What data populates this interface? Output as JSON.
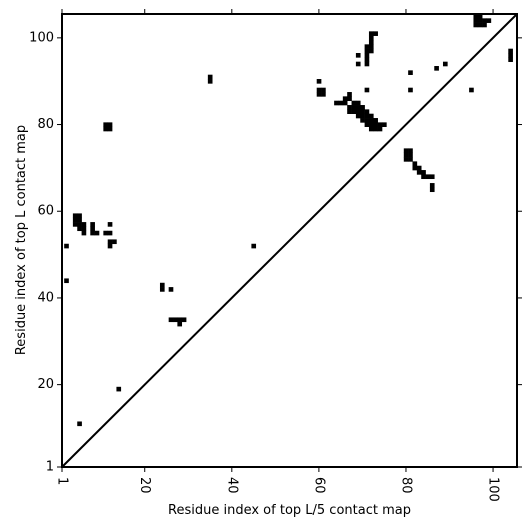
{
  "chart_data": {
    "type": "heatmap",
    "title": "",
    "xlabel": "Residue index of top L/5 contact map",
    "ylabel": "Residue index of top L contact map",
    "xlim": [
      1,
      105.5
    ],
    "ylim": [
      1,
      105.5
    ],
    "xticks": [
      1,
      20,
      40,
      60,
      80,
      100
    ],
    "yticks": [
      1,
      20,
      40,
      60,
      80,
      100
    ],
    "xtick_labels": [
      "1",
      "20",
      "40",
      "60",
      "80",
      "100"
    ],
    "ytick_labels": [
      "1",
      "20",
      "40",
      "60",
      "80",
      "100"
    ],
    "grid": false,
    "diagonal_line": true,
    "marker_color": "#000000",
    "cells": [
      [
        2,
        52
      ],
      [
        2,
        44
      ],
      [
        5,
        11
      ],
      [
        4,
        59
      ],
      [
        5,
        59
      ],
      [
        4,
        58
      ],
      [
        5,
        58
      ],
      [
        4,
        57
      ],
      [
        5,
        57
      ],
      [
        6,
        57
      ],
      [
        5,
        56
      ],
      [
        6,
        56
      ],
      [
        6,
        55
      ],
      [
        8,
        57
      ],
      [
        8,
        56
      ],
      [
        8,
        55
      ],
      [
        9,
        55
      ],
      [
        11,
        55
      ],
      [
        12,
        55
      ],
      [
        12,
        57
      ],
      [
        12,
        53
      ],
      [
        13,
        53
      ],
      [
        12,
        52
      ],
      [
        11,
        80
      ],
      [
        12,
        80
      ],
      [
        11,
        79
      ],
      [
        12,
        79
      ],
      [
        14,
        19
      ],
      [
        24,
        43
      ],
      [
        24,
        42
      ],
      [
        26,
        42
      ],
      [
        26,
        35
      ],
      [
        27,
        35
      ],
      [
        28,
        35
      ],
      [
        29,
        35
      ],
      [
        28,
        34
      ],
      [
        35,
        91
      ],
      [
        35,
        90
      ],
      [
        45,
        52
      ],
      [
        60,
        90
      ],
      [
        60,
        88
      ],
      [
        61,
        88
      ],
      [
        60,
        87
      ],
      [
        61,
        87
      ],
      [
        64,
        85
      ],
      [
        65,
        85
      ],
      [
        66,
        85
      ],
      [
        66,
        86
      ],
      [
        67,
        86
      ],
      [
        67,
        87
      ],
      [
        67,
        84
      ],
      [
        68,
        84
      ],
      [
        69,
        84
      ],
      [
        70,
        84
      ],
      [
        67,
        83
      ],
      [
        68,
        83
      ],
      [
        69,
        83
      ],
      [
        70,
        83
      ],
      [
        68,
        85
      ],
      [
        69,
        85
      ],
      [
        69,
        82
      ],
      [
        70,
        82
      ],
      [
        71,
        82
      ],
      [
        72,
        82
      ],
      [
        70,
        81
      ],
      [
        71,
        81
      ],
      [
        72,
        81
      ],
      [
        73,
        81
      ],
      [
        71,
        80
      ],
      [
        72,
        80
      ],
      [
        73,
        80
      ],
      [
        74,
        80
      ],
      [
        75,
        80
      ],
      [
        72,
        79
      ],
      [
        73,
        79
      ],
      [
        74,
        79
      ],
      [
        71,
        83
      ],
      [
        69,
        96
      ],
      [
        69,
        94
      ],
      [
        71,
        96
      ],
      [
        71,
        95
      ],
      [
        71,
        94
      ],
      [
        71,
        98
      ],
      [
        72,
        98
      ],
      [
        71,
        97
      ],
      [
        72,
        97
      ],
      [
        72,
        99
      ],
      [
        72,
        100
      ],
      [
        72,
        101
      ],
      [
        73,
        101
      ],
      [
        71,
        88
      ],
      [
        81,
        92
      ],
      [
        81,
        88
      ],
      [
        80,
        74
      ],
      [
        81,
        74
      ],
      [
        80,
        73
      ],
      [
        81,
        73
      ],
      [
        80,
        72
      ],
      [
        81,
        72
      ],
      [
        82,
        71
      ],
      [
        82,
        70
      ],
      [
        83,
        70
      ],
      [
        83,
        69
      ],
      [
        84,
        69
      ],
      [
        84,
        68
      ],
      [
        85,
        68
      ],
      [
        86,
        68
      ],
      [
        86,
        66
      ],
      [
        86,
        65
      ],
      [
        87,
        93
      ],
      [
        89,
        94
      ],
      [
        95,
        88
      ],
      [
        96,
        105
      ],
      [
        97,
        105
      ],
      [
        96,
        104
      ],
      [
        97,
        104
      ],
      [
        98,
        104
      ],
      [
        99,
        104
      ],
      [
        96,
        103
      ],
      [
        97,
        103
      ],
      [
        98,
        103
      ],
      [
        104,
        97
      ],
      [
        104,
        96
      ],
      [
        104,
        95
      ]
    ]
  }
}
